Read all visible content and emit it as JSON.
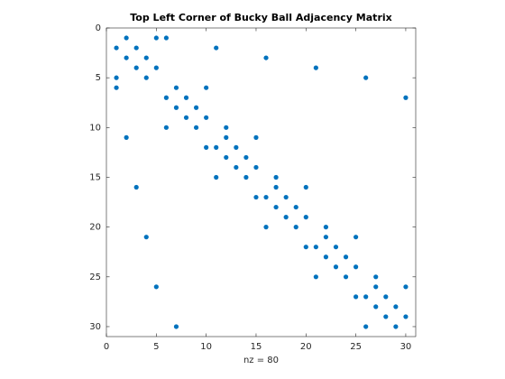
{
  "chart_data": {
    "type": "scatter",
    "title": "Top Left Corner of Bucky Ball Adjacency Matrix",
    "xlabel": "nz = 80",
    "x": [
      2,
      5,
      6,
      1,
      3,
      11,
      2,
      4,
      16,
      3,
      5,
      21,
      1,
      4,
      26,
      1,
      7,
      10,
      6,
      8,
      30,
      7,
      9,
      8,
      10,
      6,
      9,
      12,
      2,
      12,
      15,
      10,
      11,
      13,
      12,
      14,
      13,
      15,
      11,
      14,
      17,
      3,
      17,
      20,
      15,
      16,
      18,
      17,
      19,
      18,
      20,
      16,
      19,
      22,
      4,
      22,
      25,
      20,
      21,
      23,
      22,
      24,
      23,
      25,
      21,
      24,
      27,
      5,
      27,
      30,
      25,
      26,
      28,
      27,
      29,
      28,
      30,
      7,
      26,
      29
    ],
    "y": [
      1,
      1,
      1,
      2,
      2,
      2,
      3,
      3,
      3,
      4,
      4,
      4,
      5,
      5,
      5,
      6,
      6,
      6,
      7,
      7,
      7,
      8,
      8,
      9,
      9,
      10,
      10,
      10,
      11,
      11,
      11,
      12,
      12,
      12,
      13,
      13,
      14,
      14,
      15,
      15,
      15,
      16,
      16,
      16,
      17,
      17,
      17,
      18,
      18,
      19,
      19,
      20,
      20,
      20,
      21,
      21,
      21,
      22,
      22,
      22,
      23,
      23,
      24,
      24,
      25,
      25,
      25,
      26,
      26,
      26,
      27,
      27,
      27,
      28,
      28,
      29,
      29,
      30,
      30,
      30
    ],
    "color": "#0072bd",
    "xlim": [
      0,
      31
    ],
    "ylim": [
      0,
      31
    ],
    "y_reversed": true,
    "xticks": [
      0,
      5,
      10,
      15,
      20,
      25,
      30
    ],
    "yticks": [
      0,
      5,
      10,
      15,
      20,
      25,
      30
    ]
  }
}
